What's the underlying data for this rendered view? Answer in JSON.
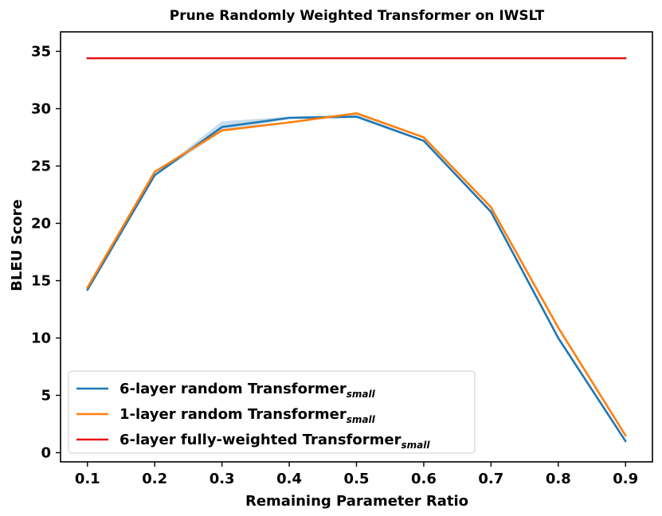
{
  "chart_data": {
    "type": "line",
    "title": "Prune Randomly Weighted Transformer on IWSLT",
    "xlabel": "Remaining Parameter Ratio",
    "ylabel": "BLEU Score",
    "x": [
      0.1,
      0.2,
      0.3,
      0.4,
      0.5,
      0.6,
      0.7,
      0.8,
      0.9
    ],
    "x_tick_labels": [
      "0.1",
      "0.2",
      "0.3",
      "0.4",
      "0.5",
      "0.6",
      "0.7",
      "0.8",
      "0.9"
    ],
    "y_tick_labels": [
      "0",
      "5",
      "10",
      "15",
      "20",
      "25",
      "30",
      "35"
    ],
    "y_ticks": [
      0,
      5,
      10,
      15,
      20,
      25,
      30,
      35
    ],
    "xlim": [
      0.06,
      0.94
    ],
    "ylim": [
      -0.8,
      36.7
    ],
    "grid": false,
    "legend_position": "lower-left",
    "series": [
      {
        "name": "6-layer random Transformer",
        "name_subscript": "small",
        "color": "#1f77b4",
        "values": [
          14.2,
          24.2,
          28.4,
          29.2,
          29.3,
          27.2,
          21.0,
          10.0,
          1.0
        ],
        "band_lower": [
          14.1,
          24.1,
          28.0,
          29.1,
          29.2,
          27.1,
          20.9,
          9.9,
          0.95
        ],
        "band_upper": [
          14.3,
          24.3,
          28.9,
          29.3,
          29.5,
          27.3,
          21.1,
          10.1,
          1.05
        ]
      },
      {
        "name": "1-layer random Transformer",
        "name_subscript": "small",
        "color": "#ff7f0e",
        "values": [
          14.4,
          24.5,
          28.1,
          28.8,
          29.6,
          27.5,
          21.4,
          10.9,
          1.5
        ]
      },
      {
        "name": "6-layer fully-weighted Transformer",
        "name_subscript": "small",
        "color": "#e8141a",
        "values": [
          34.4,
          34.4,
          34.4,
          34.4,
          34.4,
          34.4,
          34.4,
          34.4,
          34.4
        ]
      }
    ]
  }
}
